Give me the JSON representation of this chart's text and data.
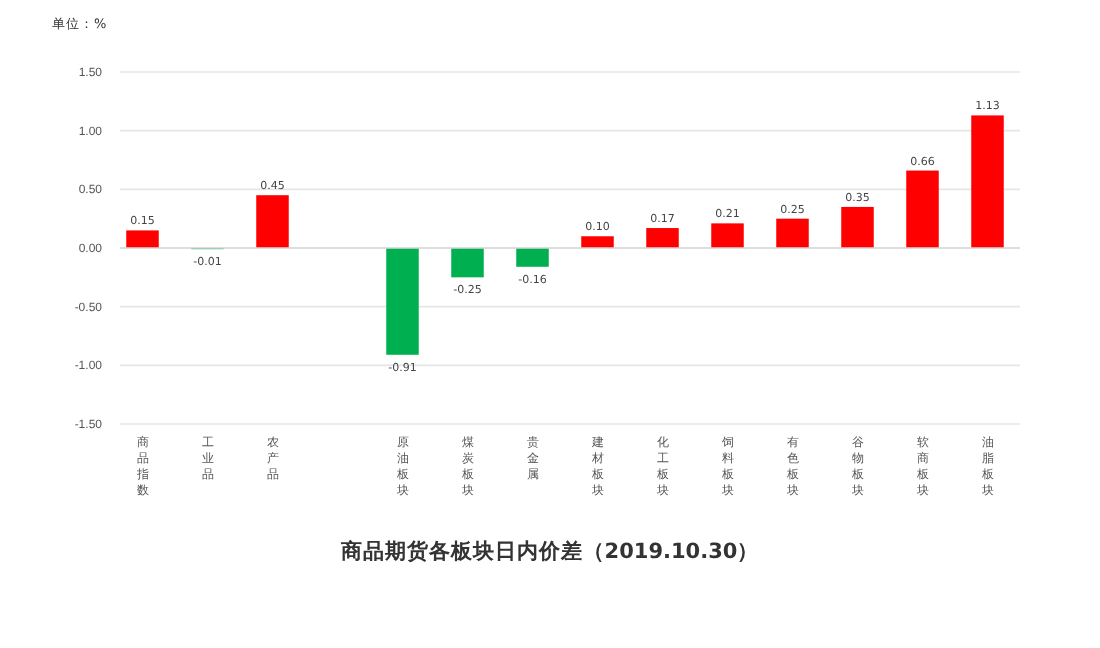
{
  "chart_data": {
    "type": "bar",
    "title": "商品期货各板块日内价差（2019.10.30）",
    "ylabel": "单位：%",
    "categories": [
      "商品指数",
      "工业品",
      "农产品",
      null,
      "原油板块",
      "煤炭板块",
      "贵金属",
      "建材板块",
      "化工板块",
      "饲料板块",
      "有色板块",
      "谷物板块",
      "软商板块",
      "油脂板块"
    ],
    "values": [
      0.15,
      -0.01,
      0.45,
      null,
      -0.91,
      -0.25,
      -0.16,
      0.1,
      0.17,
      0.21,
      0.25,
      0.35,
      0.66,
      1.13
    ],
    "colors": [
      "#ff0000",
      "#00b050",
      "#ff0000",
      null,
      "#00b050",
      "#00b050",
      "#00b050",
      "#ff0000",
      "#ff0000",
      "#ff0000",
      "#ff0000",
      "#ff0000",
      "#ff0000",
      "#ff0000"
    ],
    "value_labels": [
      "0.15",
      "-0.01",
      "0.45",
      null,
      "-0.91",
      "-0.25",
      "-0.16",
      "0.10",
      "0.17",
      "0.21",
      "0.25",
      "0.35",
      "0.66",
      "1.13"
    ],
    "ylim": [
      -1.5,
      1.5
    ],
    "yticks": [
      {
        "value": -1.5,
        "label": "-1.50"
      },
      {
        "value": -1,
        "label": "-1.00"
      },
      {
        "value": -0.5,
        "label": "-0.50"
      },
      {
        "value": 0,
        "label": "0.00"
      },
      {
        "value": 0.5,
        "label": "0.50"
      },
      {
        "value": 1,
        "label": "1.00"
      },
      {
        "value": 1.5,
        "label": "1.50"
      }
    ],
    "grid": "y"
  }
}
